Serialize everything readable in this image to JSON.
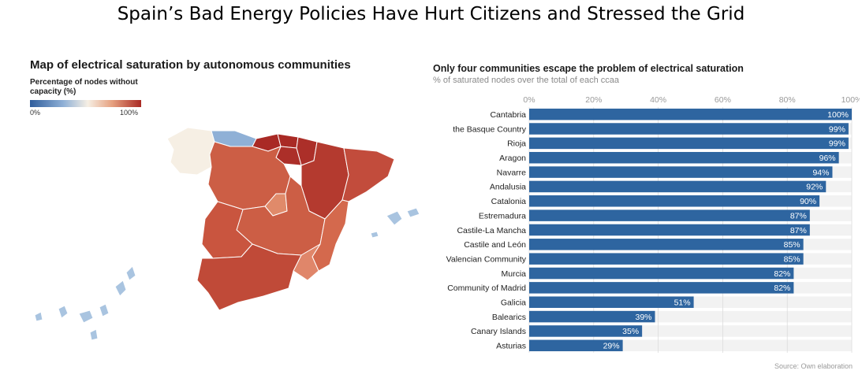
{
  "page": {
    "title": "Spain’s Bad Energy Policies Have Hurt Citizens and Stressed the Grid",
    "source": "Source: Own elaboration"
  },
  "map": {
    "title": "Map of electrical saturation by autonomous communities",
    "legend_title": "Percentage of nodes without capacity (%)",
    "legend_min": "0%",
    "legend_max": "100%",
    "colors": {
      "low": "#2f5d9c",
      "light_blue": "#8fb0d6",
      "neutral": "#f6efe4",
      "mid": "#d6674b",
      "high": "#a92a25",
      "border": "#ffffff"
    }
  },
  "chart_data": {
    "type": "bar",
    "orientation": "horizontal",
    "title": "Only four communities escape the problem of electrical saturation",
    "subtitle": "% of saturated nodes over the total of each ccaa",
    "xlim": [
      0,
      100
    ],
    "ticks": [
      "0%",
      "20%",
      "40%",
      "60%",
      "80%",
      "100%"
    ],
    "bar_color": "#2e65a0",
    "track_color": "#f2f2f2",
    "categories": [
      "Cantabria",
      "the Basque Country",
      "Rioja",
      "Aragon",
      "Navarre",
      "Andalusia",
      "Catalonia",
      "Estremadura",
      "Castile-La Mancha",
      "Castile and León",
      "Valencian Community",
      "Murcia",
      "Community of Madrid",
      "Galicia",
      "Balearics",
      "Canary Islands",
      "Asturias"
    ],
    "values": [
      100,
      99,
      99,
      96,
      94,
      92,
      90,
      87,
      87,
      85,
      85,
      82,
      82,
      51,
      39,
      35,
      29
    ],
    "labels": [
      "100%",
      "99%",
      "99%",
      "96%",
      "94%",
      "92%",
      "90%",
      "87%",
      "87%",
      "85%",
      "85%",
      "82%",
      "82%",
      "51%",
      "39%",
      "35%",
      "29%"
    ]
  }
}
